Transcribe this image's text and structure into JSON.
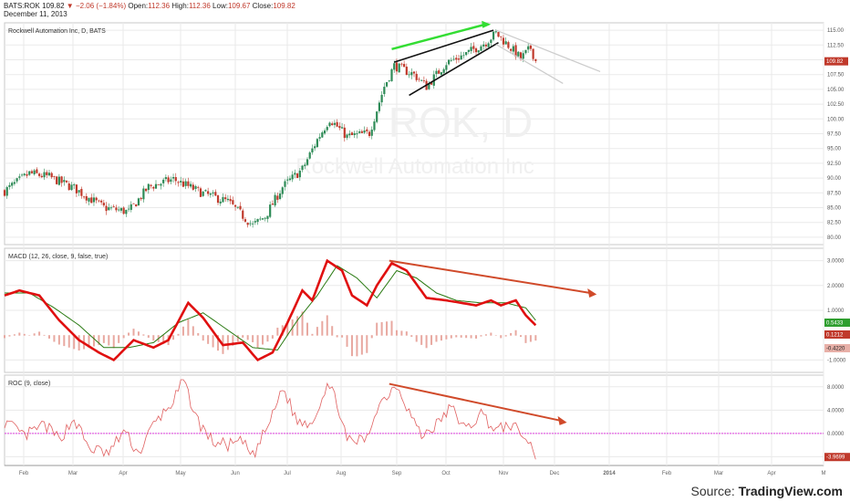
{
  "header": {
    "symbol": "BATS:ROK",
    "last": "109.82",
    "change": "−2.06 (−1.84%)",
    "open_label": "Open:",
    "open": "112.36",
    "high_label": "High:",
    "high": "112.36",
    "low_label": "Low:",
    "low": "109.67",
    "close_label": "Close:",
    "close": "109.82",
    "date": "December 11, 2013"
  },
  "watermark": {
    "ticker": "ROK, D",
    "name": "Rockwell Automation Inc"
  },
  "source": {
    "prefix": "Source: ",
    "brand": "TradingView.com"
  },
  "colors": {
    "up": "#2e8b57",
    "down": "#c0392b",
    "macd": "#e01010",
    "signal": "#2a7a12",
    "hist_pos": "#e8a8a0",
    "roc": "#e06060",
    "roc_zero": "#e040e0",
    "trend_green": "#33dd33",
    "trend_black": "#111111",
    "arrow_red": "#d04a2a",
    "channel_gray": "#cccccc",
    "grid": "#eaeaea"
  },
  "chart_data": [
    {
      "id": "price",
      "type": "candlestick",
      "title": "Rockwell Automation Inc, D, BATS",
      "ylim": [
        78.75,
        116.25
      ],
      "yticks": [
        "115.00",
        "112.50",
        "110.00",
        "107.50",
        "105.00",
        "102.50",
        "100.00",
        "97.50",
        "95.00",
        "92.50",
        "90.00",
        "87.50",
        "85.00",
        "82.50",
        "80.00"
      ],
      "last_value": "109.82",
      "x_axis": [
        "Feb",
        "Mar",
        "Apr",
        "May",
        "Jun",
        "Jul",
        "Aug",
        "Sep",
        "Oct",
        "Nov",
        "Dec",
        "2014",
        "Feb",
        "Mar",
        "Apr",
        "M"
      ],
      "trend_points": [
        {
          "day": 0,
          "price": 87.8
        },
        {
          "day": 10,
          "price": 90.8
        },
        {
          "day": 18,
          "price": 90.2
        },
        {
          "day": 28,
          "price": 88.3
        },
        {
          "day": 40,
          "price": 85.0
        },
        {
          "day": 50,
          "price": 84.3
        },
        {
          "day": 58,
          "price": 88.5
        },
        {
          "day": 68,
          "price": 89.8
        },
        {
          "day": 80,
          "price": 87.4
        },
        {
          "day": 90,
          "price": 86.0
        },
        {
          "day": 100,
          "price": 82.0
        },
        {
          "day": 105,
          "price": 83.5
        },
        {
          "day": 112,
          "price": 88.5
        },
        {
          "day": 120,
          "price": 91.5
        },
        {
          "day": 126,
          "price": 96.5
        },
        {
          "day": 131,
          "price": 100.0
        },
        {
          "day": 138,
          "price": 97.0
        },
        {
          "day": 147,
          "price": 97.6
        },
        {
          "day": 153,
          "price": 105.5
        },
        {
          "day": 157,
          "price": 109.0
        },
        {
          "day": 165,
          "price": 107.5
        },
        {
          "day": 170,
          "price": 105.5
        },
        {
          "day": 178,
          "price": 109.5
        },
        {
          "day": 186,
          "price": 111.0
        },
        {
          "day": 194,
          "price": 113.0
        },
        {
          "day": 198,
          "price": 114.5
        },
        {
          "day": 204,
          "price": 112.0
        },
        {
          "day": 208,
          "price": 110.2
        },
        {
          "day": 212,
          "price": 112.0
        },
        {
          "day": 214,
          "price": 109.8
        }
      ]
    },
    {
      "id": "macd",
      "type": "line",
      "title": "MACD (12, 26, close, 9, false, true)",
      "ylim": [
        -1.5,
        3.5
      ],
      "yticks": [
        "3.0000",
        "2.0000",
        "1.0000",
        "-1.0000"
      ],
      "last_values": [
        "0.5433",
        "0.1212",
        "-0.4220"
      ],
      "macd_points": [
        {
          "day": 0,
          "v": 1.6
        },
        {
          "day": 6,
          "v": 1.8
        },
        {
          "day": 14,
          "v": 1.6
        },
        {
          "day": 22,
          "v": 0.6
        },
        {
          "day": 30,
          "v": -0.2
        },
        {
          "day": 38,
          "v": -0.7
        },
        {
          "day": 44,
          "v": -1.0
        },
        {
          "day": 52,
          "v": -0.2
        },
        {
          "day": 60,
          "v": -0.5
        },
        {
          "day": 66,
          "v": -0.2
        },
        {
          "day": 74,
          "v": 1.3
        },
        {
          "day": 80,
          "v": 0.7
        },
        {
          "day": 88,
          "v": -0.4
        },
        {
          "day": 96,
          "v": -0.3
        },
        {
          "day": 102,
          "v": -1.0
        },
        {
          "day": 108,
          "v": -0.7
        },
        {
          "day": 114,
          "v": 0.5
        },
        {
          "day": 120,
          "v": 1.8
        },
        {
          "day": 124,
          "v": 1.4
        },
        {
          "day": 130,
          "v": 3.0
        },
        {
          "day": 136,
          "v": 2.6
        },
        {
          "day": 140,
          "v": 1.6
        },
        {
          "day": 146,
          "v": 1.2
        },
        {
          "day": 150,
          "v": 2.0
        },
        {
          "day": 156,
          "v": 2.9
        },
        {
          "day": 162,
          "v": 2.6
        },
        {
          "day": 170,
          "v": 1.5
        },
        {
          "day": 178,
          "v": 1.4
        },
        {
          "day": 184,
          "v": 1.3
        },
        {
          "day": 190,
          "v": 1.2
        },
        {
          "day": 196,
          "v": 1.4
        },
        {
          "day": 200,
          "v": 1.2
        },
        {
          "day": 206,
          "v": 1.4
        },
        {
          "day": 210,
          "v": 0.8
        },
        {
          "day": 214,
          "v": 0.4
        }
      ],
      "signal_points": [
        {
          "day": 0,
          "v": 1.7
        },
        {
          "day": 10,
          "v": 1.7
        },
        {
          "day": 20,
          "v": 1.1
        },
        {
          "day": 30,
          "v": 0.4
        },
        {
          "day": 40,
          "v": -0.5
        },
        {
          "day": 50,
          "v": -0.5
        },
        {
          "day": 60,
          "v": -0.3
        },
        {
          "day": 70,
          "v": 0.5
        },
        {
          "day": 80,
          "v": 0.9
        },
        {
          "day": 90,
          "v": 0.2
        },
        {
          "day": 100,
          "v": -0.5
        },
        {
          "day": 110,
          "v": -0.6
        },
        {
          "day": 118,
          "v": 0.6
        },
        {
          "day": 126,
          "v": 1.6
        },
        {
          "day": 134,
          "v": 2.8
        },
        {
          "day": 142,
          "v": 2.3
        },
        {
          "day": 150,
          "v": 1.5
        },
        {
          "day": 158,
          "v": 2.6
        },
        {
          "day": 166,
          "v": 2.3
        },
        {
          "day": 174,
          "v": 1.7
        },
        {
          "day": 182,
          "v": 1.4
        },
        {
          "day": 192,
          "v": 1.3
        },
        {
          "day": 202,
          "v": 1.3
        },
        {
          "day": 210,
          "v": 1.1
        },
        {
          "day": 214,
          "v": 0.6
        }
      ]
    },
    {
      "id": "roc",
      "type": "line",
      "title": "ROC (9, close)",
      "ylim": [
        -5.5,
        10.0
      ],
      "yticks": [
        "8.0000",
        "4.0000",
        "0.0000",
        "-4.0000"
      ],
      "last_value": "-3.9699",
      "points": [
        {
          "day": 0,
          "v": 2.0
        },
        {
          "day": 8,
          "v": -0.5
        },
        {
          "day": 16,
          "v": 1.5
        },
        {
          "day": 22,
          "v": -1.0
        },
        {
          "day": 28,
          "v": 2.5
        },
        {
          "day": 34,
          "v": -2.5
        },
        {
          "day": 42,
          "v": -3.5
        },
        {
          "day": 48,
          "v": 0.5
        },
        {
          "day": 54,
          "v": -3.5
        },
        {
          "day": 60,
          "v": 1.5
        },
        {
          "day": 68,
          "v": 5.5
        },
        {
          "day": 72,
          "v": 9.0
        },
        {
          "day": 78,
          "v": 2.0
        },
        {
          "day": 84,
          "v": -1.5
        },
        {
          "day": 90,
          "v": -2.0
        },
        {
          "day": 96,
          "v": -1.5
        },
        {
          "day": 100,
          "v": -4.0
        },
        {
          "day": 108,
          "v": 3.0
        },
        {
          "day": 112,
          "v": 8.0
        },
        {
          "day": 118,
          "v": 2.0
        },
        {
          "day": 124,
          "v": 2.0
        },
        {
          "day": 130,
          "v": 8.5
        },
        {
          "day": 134,
          "v": 5.5
        },
        {
          "day": 138,
          "v": -1.5
        },
        {
          "day": 146,
          "v": -1.0
        },
        {
          "day": 150,
          "v": 4.5
        },
        {
          "day": 154,
          "v": 6.5
        },
        {
          "day": 158,
          "v": 8.5
        },
        {
          "day": 164,
          "v": 3.0
        },
        {
          "day": 168,
          "v": -0.5
        },
        {
          "day": 174,
          "v": 1.5
        },
        {
          "day": 180,
          "v": 4.5
        },
        {
          "day": 186,
          "v": 0.5
        },
        {
          "day": 192,
          "v": 3.5
        },
        {
          "day": 198,
          "v": 0.5
        },
        {
          "day": 204,
          "v": 1.5
        },
        {
          "day": 208,
          "v": 0.0
        },
        {
          "day": 212,
          "v": -2.0
        },
        {
          "day": 214,
          "v": -4.0
        }
      ]
    }
  ]
}
